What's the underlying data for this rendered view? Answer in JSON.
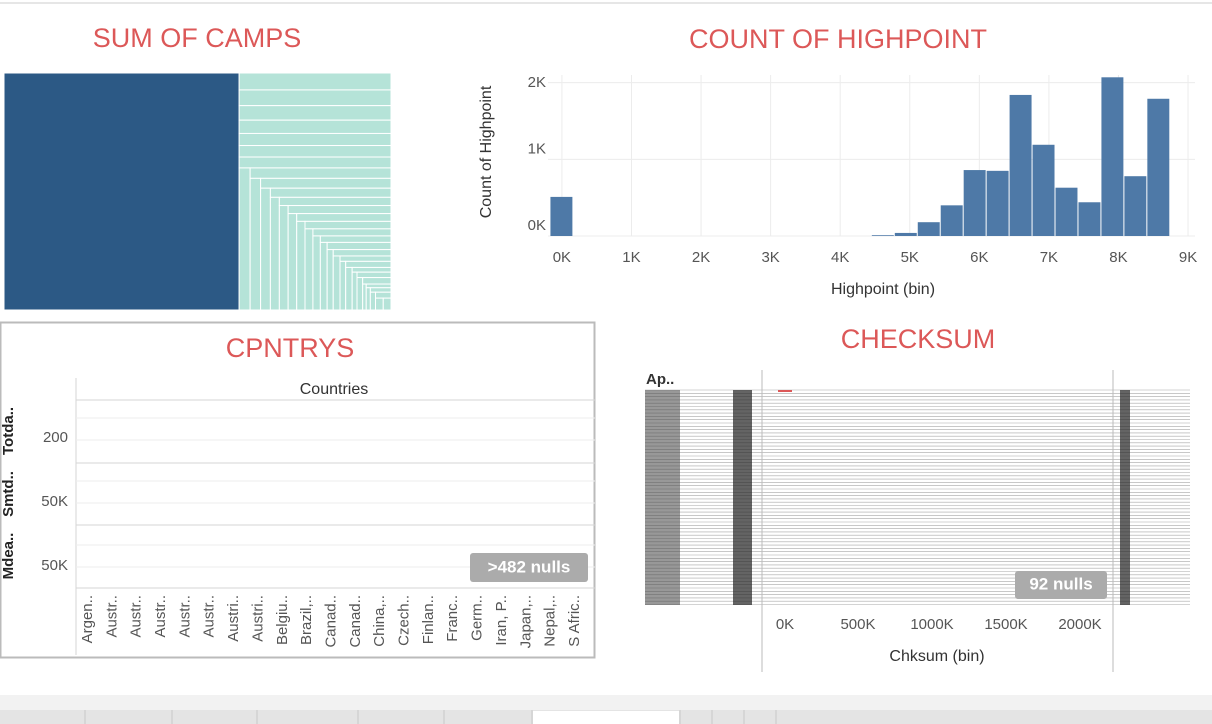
{
  "chart_data": [
    {
      "type": "treemap",
      "title": "SUM OF CAMPS",
      "values": [
        607,
        28,
        26,
        24,
        22,
        20,
        19,
        18,
        17,
        16,
        15,
        14,
        13,
        12,
        11,
        10,
        10,
        9,
        9,
        8,
        8,
        7,
        7,
        6,
        6,
        5,
        5,
        5,
        4,
        4,
        4,
        3,
        3,
        3,
        3,
        2,
        2,
        2,
        2,
        2,
        1,
        1,
        1,
        1,
        1,
        1,
        1,
        1
      ],
      "color": "#b5e3d8",
      "highlight_color": "#2c5985"
    },
    {
      "type": "histogram",
      "title": "COUNT OF HIGHPOINT",
      "x_label": "Highpoint (bin)",
      "y_label": "Count of Highpoint",
      "bins": [
        -165,
        165,
        495,
        825,
        1155,
        1485,
        1815,
        2145,
        2475,
        2805,
        3135,
        3465,
        3795,
        4125,
        4455,
        4785,
        5115,
        5445,
        5775,
        6105,
        6435,
        6765,
        7095,
        7425,
        7755,
        8085,
        8415,
        8745
      ],
      "values": [
        510,
        0,
        0,
        0,
        0,
        0,
        0,
        0,
        0,
        0,
        0,
        0,
        0,
        0,
        10,
        40,
        180,
        400,
        860,
        850,
        1840,
        1190,
        630,
        440,
        2070,
        780,
        1790
      ],
      "color": "#4e79a7",
      "grid": true,
      "xlim": [
        -200,
        9100
      ],
      "ylim": [
        0,
        2100
      ],
      "xticks": [
        {
          "value": 0,
          "label": "0K"
        },
        {
          "value": 1000,
          "label": "1K"
        },
        {
          "value": 2000,
          "label": "2K"
        },
        {
          "value": 3000,
          "label": "3K"
        },
        {
          "value": 4000,
          "label": "4K"
        },
        {
          "value": 5000,
          "label": "5K"
        },
        {
          "value": 6000,
          "label": "6K"
        },
        {
          "value": 7000,
          "label": "7K"
        },
        {
          "value": 8000,
          "label": "8K"
        },
        {
          "value": 9000,
          "label": "9K"
        }
      ],
      "yticks": [
        {
          "value": 0,
          "label": "0K"
        },
        {
          "value": 1000,
          "label": "1K"
        },
        {
          "value": 2000,
          "label": "2K"
        }
      ]
    }
  ],
  "cpntrys": {
    "title": "CPNTRYS",
    "column_header": "Countries",
    "row_labels": [
      "Totda..",
      "Smtd..",
      "Mdea.."
    ],
    "row_ticks": [
      "200",
      "50K",
      "50K"
    ],
    "categories": [
      "Argen..",
      "Austr..",
      "Austr..",
      "Austr..",
      "Austr..",
      "Austr..",
      "Austri..",
      "Austri..",
      "Belgiu..",
      "Brazil,..",
      "Canad..",
      "Canad..",
      "China,..",
      "Czech..",
      "Finlan..",
      "Franc..",
      "Germ..",
      "Iran, P..",
      "Japan,..",
      "Nepal,..",
      "S Afric.."
    ],
    "nulls": ">482 nulls"
  },
  "checksum": {
    "title": "CHECKSUM",
    "row_header": "Ap..",
    "x_label": "Chksum (bin)",
    "xtick_labels": [
      "0K",
      "500K",
      "1000K",
      "1500K",
      "2000K"
    ],
    "nulls": "92 nulls"
  }
}
